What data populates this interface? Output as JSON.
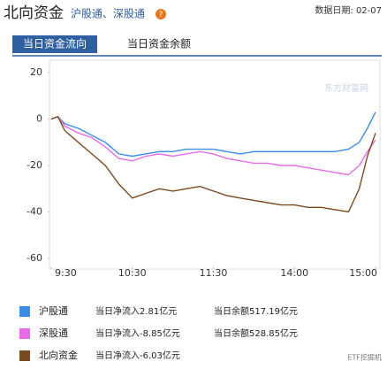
{
  "header": {
    "title": "北向资金",
    "subtitle": "沪股通、深股通",
    "help_icon": "?",
    "date": "数据日期: 02-07"
  },
  "tabs": [
    "当日资金流向",
    "当日资金余额"
  ],
  "watermark": "东方财富网",
  "footer": "ETF挖掘机",
  "chart_data": {
    "type": "line",
    "x": [
      0,
      5,
      10,
      20,
      30,
      40,
      50,
      60,
      70,
      80,
      90,
      100,
      110,
      120,
      130,
      140,
      150,
      160,
      170,
      180,
      190,
      200,
      210,
      220,
      228,
      234,
      240
    ],
    "xlim": [
      0,
      240
    ],
    "xticks": [
      {
        "value": 0,
        "label": "9:30"
      },
      {
        "value": 60,
        "label": "10:30"
      },
      {
        "value": 120,
        "label": "11:30"
      },
      {
        "value": 180,
        "label": "14:00"
      },
      {
        "value": 240,
        "label": "15:00"
      }
    ],
    "ylim": [
      -60,
      20
    ],
    "yticks": [
      20,
      0,
      -20,
      -40,
      -60
    ],
    "series": [
      {
        "name": "沪股通",
        "color": "#3a8ee6",
        "net_inflow": "当日净流入2.81亿元",
        "balance": "当日余额517.19亿元",
        "values": [
          0,
          1,
          -2,
          -4,
          -7,
          -10,
          -15,
          -16,
          -15,
          -14,
          -14,
          -13,
          -13,
          -13,
          -14,
          -15,
          -14,
          -14,
          -14,
          -14,
          -14,
          -14,
          -14,
          -13,
          -10,
          -4,
          3
        ]
      },
      {
        "name": "深股通",
        "color": "#e86ce8",
        "net_inflow": "当日净流入-8.85亿元",
        "balance": "当日余额528.85亿元",
        "values": [
          0,
          1,
          -3,
          -6,
          -8,
          -12,
          -17,
          -18,
          -16,
          -15,
          -16,
          -15,
          -14,
          -15,
          -17,
          -18,
          -19,
          -19,
          -20,
          -20,
          -21,
          -22,
          -23,
          -24,
          -20,
          -14,
          -9
        ]
      },
      {
        "name": "北向资金",
        "color": "#7a4a1e",
        "net_inflow": "当日净流入-6.03亿元",
        "values": [
          0,
          1,
          -5,
          -10,
          -15,
          -20,
          -28,
          -34,
          -32,
          -30,
          -31,
          -30,
          -29,
          -31,
          -33,
          -34,
          -35,
          -36,
          -37,
          -37,
          -38,
          -38,
          -39,
          -40,
          -30,
          -16,
          -6
        ]
      }
    ]
  }
}
